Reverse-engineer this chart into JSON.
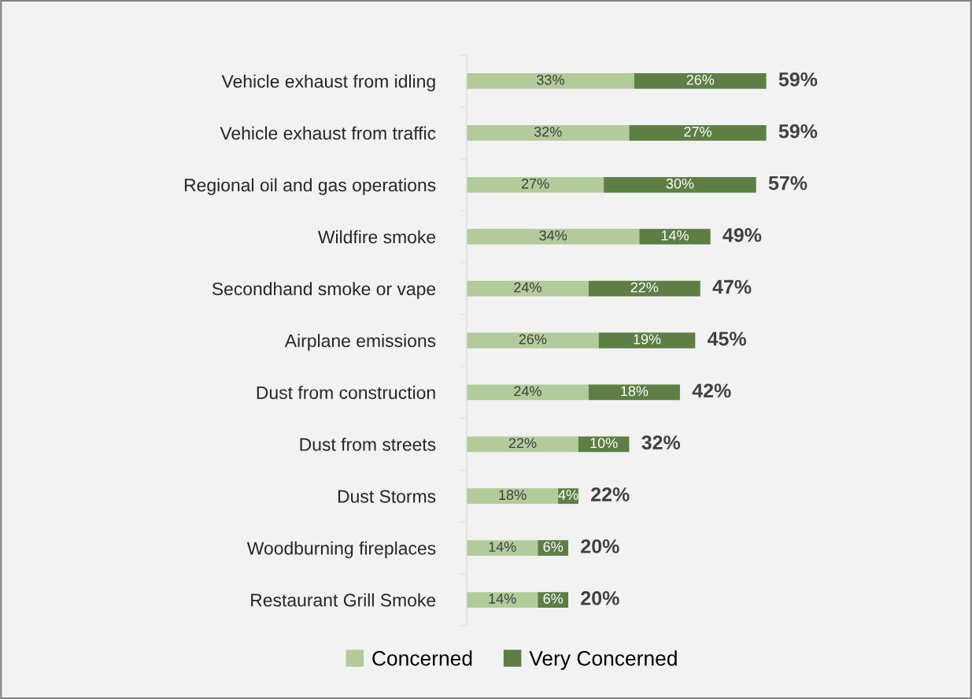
{
  "chart_data": {
    "type": "bar",
    "orientation": "horizontal",
    "stacked": true,
    "legend": "bottom",
    "categories": [
      "Vehicle exhaust from idling",
      "Vehicle exhaust from traffic",
      "Regional oil and gas operations",
      "Wildfire smoke",
      "Secondhand smoke or vape",
      "Airplane emissions",
      "Dust from construction",
      "Dust from streets",
      "Dust Storms",
      "Woodburning fireplaces",
      "Restaurant Grill Smoke"
    ],
    "series": [
      {
        "name": "Concerned",
        "color": "#b3cb9b",
        "values": [
          33,
          32,
          27,
          34,
          24,
          26,
          24,
          22,
          18,
          14,
          14
        ],
        "value_labels": [
          "33%",
          "32%",
          "27%",
          "34%",
          "24%",
          "26%",
          "24%",
          "22%",
          "18%",
          "14%",
          "14%"
        ]
      },
      {
        "name": "Very Concerned",
        "color": "#5e7e45",
        "values": [
          26,
          27,
          30,
          14,
          22,
          19,
          18,
          10,
          4,
          6,
          6
        ],
        "value_labels": [
          "26%",
          "27%",
          "30%",
          "14%",
          "22%",
          "19%",
          "18%",
          "10%",
          "4%",
          "6%",
          "6%"
        ]
      }
    ],
    "totals": [
      "59%",
      "59%",
      "57%",
      "49%",
      "47%",
      "45%",
      "42%",
      "32%",
      "22%",
      "20%",
      "20%"
    ]
  }
}
